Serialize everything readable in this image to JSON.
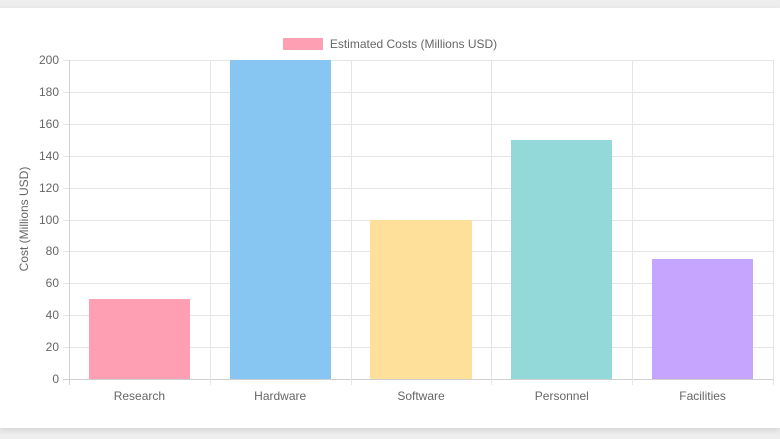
{
  "chart_data": {
    "type": "bar",
    "title": "",
    "categories": [
      "Research",
      "Hardware",
      "Software",
      "Personnel",
      "Facilities"
    ],
    "series": [
      {
        "name": "Estimated Costs (Millions USD)",
        "values": [
          50,
          200,
          100,
          150,
          75
        ],
        "colors": [
          "#ff9fb3",
          "#87c5f2",
          "#ffe09b",
          "#93d9d9",
          "#c5a5ff"
        ]
      }
    ],
    "xlabel": "",
    "ylabel": "Cost (Millions USD)",
    "ylim": [
      0,
      200
    ],
    "yticks": [
      0,
      20,
      40,
      60,
      80,
      100,
      120,
      140,
      160,
      180,
      200
    ],
    "grid": true,
    "legend_position": "top"
  },
  "legend": {
    "label": "Estimated Costs (Millions USD)",
    "swatch_color": "#ff9fb3"
  }
}
